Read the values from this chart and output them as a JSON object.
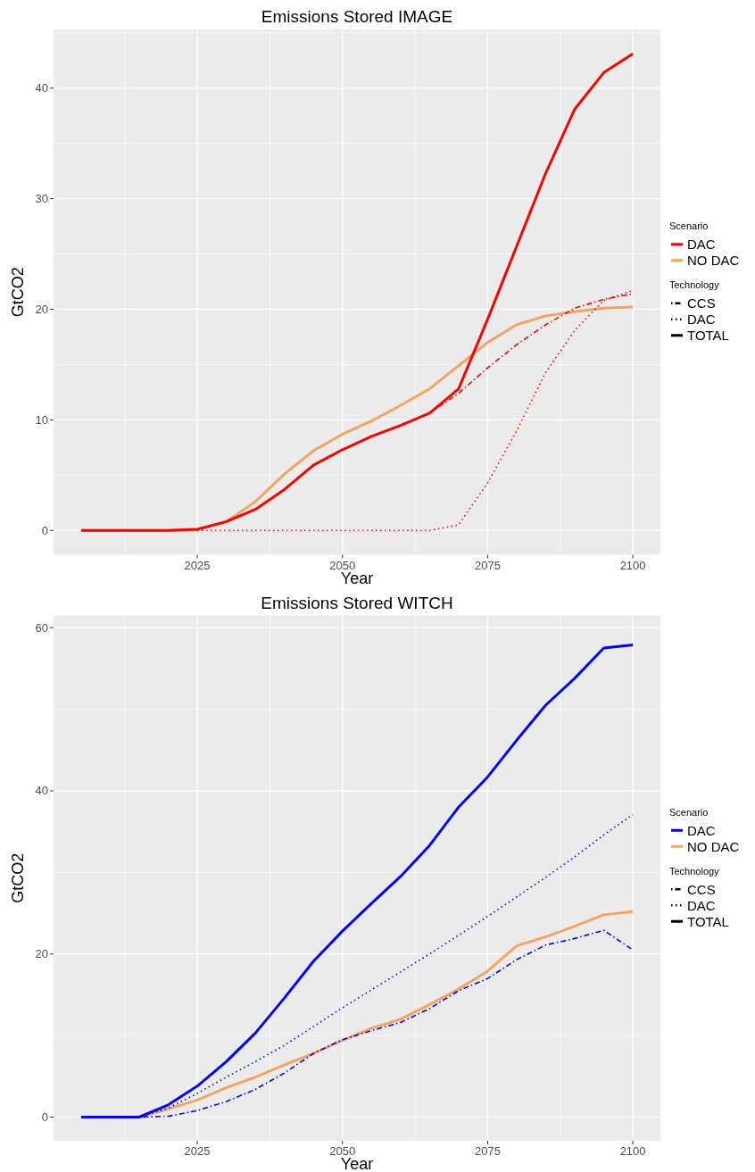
{
  "chart_data": [
    {
      "type": "line",
      "title": "Emissions Stored IMAGE",
      "xlabel": "Year",
      "ylabel": "GtCO2",
      "legend_title": "Scenario",
      "annotations": [
        "Technology",
        "CCS",
        "DAC",
        "TOTAL"
      ],
      "x": [
        2005,
        2010,
        2015,
        2020,
        2025,
        2030,
        2035,
        2040,
        2045,
        2050,
        2055,
        2060,
        2065,
        2070,
        2075,
        2080,
        2085,
        2090,
        2095,
        2100
      ],
      "xlim": [
        2000.25,
        2104.75
      ],
      "xticks": [
        2025,
        2050,
        2075,
        2100
      ],
      "ylim": [
        -2.2,
        45.3
      ],
      "yticks": [
        0,
        10,
        20,
        30,
        40
      ],
      "grid": true,
      "legend": "right",
      "series": [
        {
          "name": "DAC",
          "color": "#ff0000",
          "line_style": "solid",
          "values": [
            0,
            0,
            0,
            0,
            0.1,
            0.8,
            1.9,
            3.7,
            5.9,
            7.3,
            8.5,
            9.5,
            10.6,
            12.8,
            19.1,
            25.7,
            32.3,
            38.1,
            41.4,
            43.1
          ]
        },
        {
          "color": "#ff0000",
          "line_style": "dashed",
          "values": [
            0,
            0,
            0,
            0,
            0.1,
            0.8,
            1.9,
            3.7,
            5.9,
            7.3,
            8.5,
            9.5,
            10.6,
            12.4,
            14.7,
            16.8,
            18.6,
            20.1,
            20.9,
            21.4
          ]
        },
        {
          "color": "#ff0000",
          "line_style": "dotted",
          "values": [
            null,
            null,
            null,
            null,
            0,
            0,
            0,
            0,
            0,
            0,
            0,
            0,
            0,
            0.5,
            4.3,
            9.0,
            14.3,
            18.1,
            20.8,
            21.7
          ]
        },
        {
          "name": "NO DAC",
          "color": "#f4a460",
          "line_style": "solid",
          "values": [
            0,
            0,
            0,
            0,
            0.1,
            0.8,
            2.6,
            5.1,
            7.2,
            8.7,
            9.9,
            11.3,
            12.8,
            14.9,
            17.0,
            18.6,
            19.4,
            19.8,
            20.1,
            20.2
          ]
        }
      ]
    },
    {
      "type": "line",
      "title": "Emissions Stored WITCH",
      "xlabel": "Year",
      "ylabel": "GtCO2",
      "legend_title": "Scenario",
      "annotations": [
        "Technology",
        "CCS",
        "DAC",
        "TOTAL"
      ],
      "x": [
        2005,
        2010,
        2015,
        2020,
        2025,
        2030,
        2035,
        2040,
        2045,
        2050,
        2055,
        2060,
        2065,
        2070,
        2075,
        2080,
        2085,
        2090,
        2095,
        2100
      ],
      "xlim": [
        2000.25,
        2104.75
      ],
      "xticks": [
        2025,
        2050,
        2075,
        2100
      ],
      "ylim": [
        -2.9,
        61.5
      ],
      "yticks": [
        0,
        20,
        40,
        60
      ],
      "grid": true,
      "legend": "right",
      "series": [
        {
          "name": "DAC",
          "color": "#0000ff",
          "line_style": "solid",
          "values": [
            0,
            0,
            0,
            1.5,
            3.8,
            6.8,
            10.3,
            14.6,
            19.1,
            22.8,
            26.2,
            29.5,
            33.3,
            38.0,
            41.7,
            46.2,
            50.5,
            53.8,
            57.5,
            57.9
          ]
        },
        {
          "color": "#0000ff",
          "line_style": "dashed",
          "values": [
            null,
            null,
            0,
            0.1,
            0.8,
            1.9,
            3.4,
            5.4,
            7.8,
            9.5,
            10.6,
            11.6,
            13.3,
            15.5,
            17.0,
            19.3,
            21.1,
            21.9,
            22.9,
            20.5
          ]
        },
        {
          "color": "#0000ff",
          "line_style": "dotted",
          "values": [
            null,
            null,
            0,
            1.1,
            2.9,
            4.9,
            6.8,
            8.8,
            11.1,
            13.4,
            15.6,
            17.8,
            20.0,
            22.3,
            24.6,
            27.0,
            29.4,
            31.9,
            34.6,
            37.1
          ]
        },
        {
          "name": "NO DAC",
          "color": "#f4a460",
          "line_style": "solid",
          "values": [
            0,
            0,
            0,
            1.0,
            2.1,
            3.6,
            4.9,
            6.4,
            7.8,
            9.4,
            10.9,
            12.0,
            13.8,
            15.7,
            17.9,
            21.0,
            22.1,
            23.4,
            24.8,
            25.2
          ]
        }
      ]
    }
  ]
}
